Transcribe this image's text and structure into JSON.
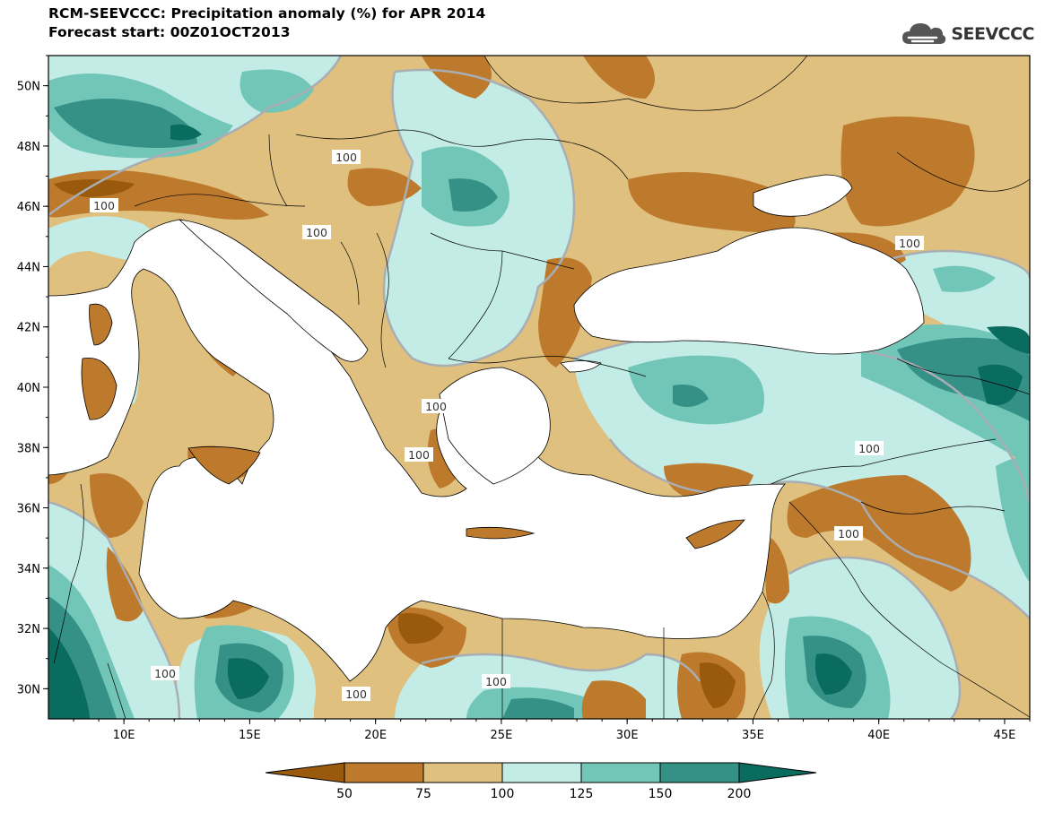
{
  "header": {
    "title_line1": "RCM-SEEVCCC: Precipitation anomaly (%) for APR 2014",
    "title_line2": "Forecast start: 00Z01OCT2013",
    "logo_text": "SEEVCCC",
    "logo_icon": "cloud-icon"
  },
  "map": {
    "lon_range": [
      7,
      46
    ],
    "lat_range": [
      29,
      51
    ],
    "lat_ticks": [
      "50N",
      "48N",
      "46N",
      "44N",
      "42N",
      "40N",
      "38N",
      "36N",
      "34N",
      "32N",
      "30N"
    ],
    "lon_ticks": [
      "10E",
      "15E",
      "20E",
      "25E",
      "30E",
      "35E",
      "40E",
      "45E"
    ],
    "contour_label": "100"
  },
  "colorbar": {
    "labels": [
      "50",
      "75",
      "100",
      "125",
      "150",
      "200"
    ],
    "colors": {
      "lt50": "#9a5a0e",
      "c50_75": "#bd7a2c",
      "c75_100": "#dfc07f",
      "c100_125": "#c3ece6",
      "c125_150": "#72c6b8",
      "c150_200": "#359186",
      "gt200": "#0a6b5f"
    }
  }
}
